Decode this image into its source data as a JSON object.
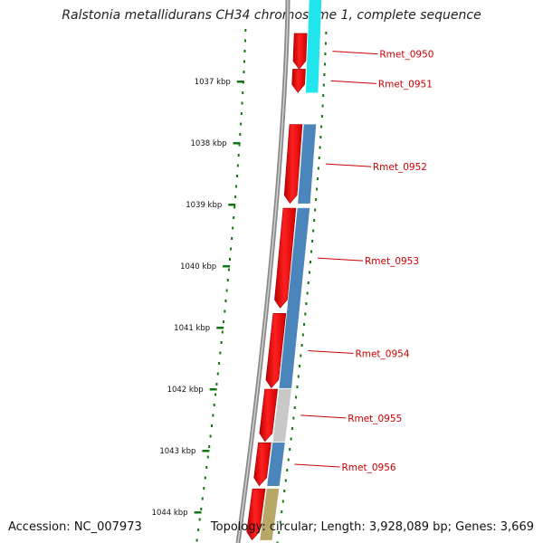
{
  "map": {
    "title": "Ralstonia metallidurans CH34 chromosome 1, complete sequence",
    "accession": "Accession: NC_007973",
    "topology": "Topology: circular; Length: 3,928,089 bp; Genes: 3,669"
  },
  "scale": {
    "unit": "kbp",
    "ticks": [
      "1037 kbp",
      "1038 kbp",
      "1039 kbp",
      "1040 kbp",
      "1041 kbp",
      "1042 kbp",
      "1043 kbp",
      "1044 kbp"
    ]
  },
  "genes": [
    {
      "label": "Rmet_0950",
      "start": 1036.22,
      "end": 1036.8
    },
    {
      "label": "Rmet_0951",
      "start": 1036.8,
      "end": 1037.18
    },
    {
      "label": "Rmet_0952",
      "start": 1037.7,
      "end": 1038.98
    },
    {
      "label": "Rmet_0953",
      "start": 1039.06,
      "end": 1040.68
    },
    {
      "label": "Rmet_0954",
      "start": 1040.77,
      "end": 1041.98
    },
    {
      "label": "Rmet_0955",
      "start": 1042.0,
      "end": 1042.85
    },
    {
      "label": "Rmet_0956",
      "start": 1042.87,
      "end": 1043.57
    },
    {
      "label": "",
      "start": 1043.62,
      "end": 1044.45
    }
  ],
  "cog_blocks": [
    {
      "start": 1035.5,
      "end": 1037.18,
      "color": "#22e6ee"
    },
    {
      "start": 1037.7,
      "end": 1038.98,
      "color": "#4a86bb"
    },
    {
      "start": 1039.06,
      "end": 1041.98,
      "color": "#4a86bb"
    },
    {
      "start": 1042.0,
      "end": 1042.85,
      "color": "#c8c8c8"
    },
    {
      "start": 1042.87,
      "end": 1043.57,
      "color": "#4a86bb"
    },
    {
      "start": 1043.62,
      "end": 1044.45,
      "color": "#b8a868"
    }
  ],
  "colors": {
    "gene_arrow": "#ff1010",
    "label_text": "#cc0000",
    "backbone": "#777777",
    "ticks": "#117711",
    "content_dots": "#117711"
  }
}
